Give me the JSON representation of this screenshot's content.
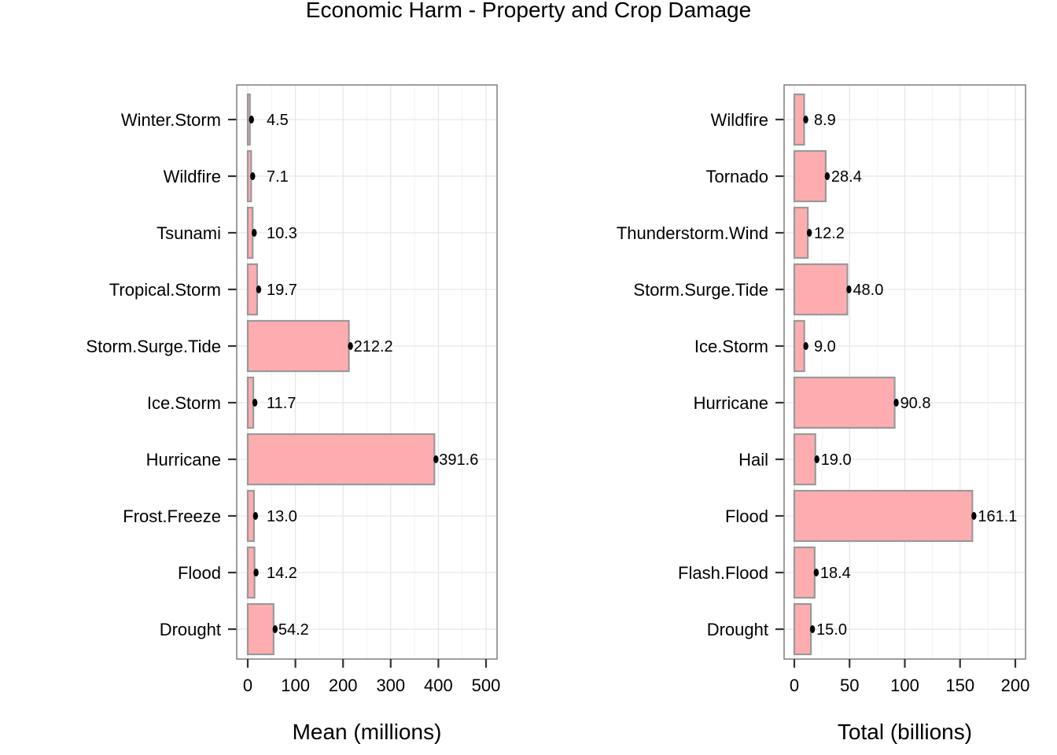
{
  "title": "Economic Harm - Property and Crop Damage",
  "chart_data": [
    {
      "type": "bar",
      "orientation": "horizontal",
      "xlabel": "Mean (millions)",
      "xlim": [
        0,
        500
      ],
      "xticks": [
        0,
        100,
        200,
        300,
        400,
        500
      ],
      "grid": true,
      "categories": [
        "Drought",
        "Flood",
        "Frost.Freeze",
        "Hurricane",
        "Ice.Storm",
        "Storm.Surge.Tide",
        "Tropical.Storm",
        "Tsunami",
        "Wildfire",
        "Winter.Storm"
      ],
      "values": [
        54.2,
        14.2,
        13.0,
        391.6,
        11.7,
        212.2,
        19.7,
        10.3,
        7.1,
        4.5
      ],
      "labels": [
        "54.2",
        "14.2",
        "13.0",
        "391.6",
        "11.7",
        "212.2",
        "19.7",
        "10.3",
        "7.1",
        "4.5"
      ],
      "bar_color": "#fdadb0",
      "bar_border": "#999999"
    },
    {
      "type": "bar",
      "orientation": "horizontal",
      "xlabel": "Total (billions)",
      "xlim": [
        0,
        200
      ],
      "xticks": [
        0,
        50,
        100,
        150,
        200
      ],
      "grid": true,
      "categories": [
        "Drought",
        "Flash.Flood",
        "Flood",
        "Hail",
        "Hurricane",
        "Ice.Storm",
        "Storm.Surge.Tide",
        "Thunderstorm.Wind",
        "Tornado",
        "Wildfire"
      ],
      "values": [
        15.0,
        18.4,
        161.1,
        19.0,
        90.8,
        9.0,
        48.0,
        12.2,
        28.4,
        8.9
      ],
      "labels": [
        "15.0",
        "18.4",
        "161.1",
        "19.0",
        "90.8",
        "9.0",
        "48.0",
        "12.2",
        "28.4",
        "8.9"
      ],
      "bar_color": "#fdadb0",
      "bar_border": "#999999"
    }
  ]
}
